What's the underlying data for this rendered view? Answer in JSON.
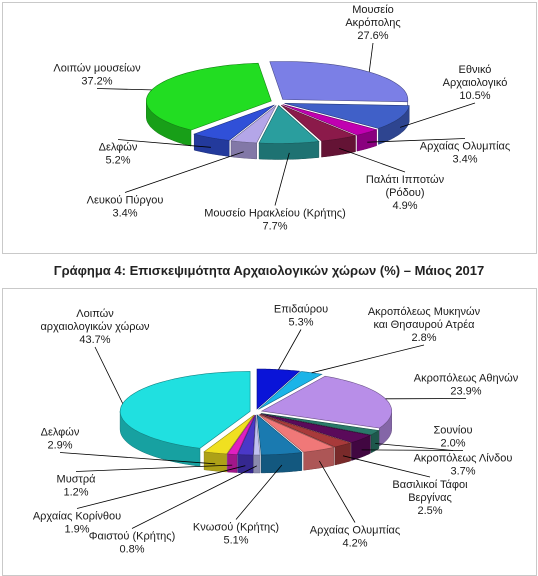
{
  "heading": "Γράφημα 4: Επισκεψιμότητα Αρχαιολογικών χώρων (%) – Μάιος 2017",
  "chart_data": [
    {
      "type": "pie",
      "style": "3d-exploded",
      "title": "",
      "slices": [
        {
          "label": [
            "Μουσείο",
            "Ακρόπολης"
          ],
          "value": 27.6,
          "display": "27.6%",
          "color": "#7b7fe6"
        },
        {
          "label": [
            "Εθνικό",
            "Αρχαιολογικό"
          ],
          "value": 10.5,
          "display": "10.5%",
          "color": "#4060c8"
        },
        {
          "label": [
            "Αρχαίας Ολυμπίας"
          ],
          "value": 3.4,
          "display": "3.4%",
          "color": "#c000b0"
        },
        {
          "label": [
            "Παλάτι Ιπποτών",
            "(Ρόδου)"
          ],
          "value": 4.9,
          "display": "4.9%",
          "color": "#8b1a4a"
        },
        {
          "label": [
            "Μουσείο Ηρακλείου (Κρήτης)"
          ],
          "value": 7.7,
          "display": "7.7%",
          "color": "#2a9e9e"
        },
        {
          "label": [
            "Λευκού Πύργου"
          ],
          "value": 3.4,
          "display": "3.4%",
          "color": "#b4a6e8"
        },
        {
          "label": [
            "Δελφών"
          ],
          "value": 5.2,
          "display": "5.2%",
          "color": "#3050d8"
        },
        {
          "label": [
            "Λοιπών μουσείων"
          ],
          "value": 37.2,
          "display": "37.2%",
          "color": "#22dd22"
        }
      ]
    },
    {
      "type": "pie",
      "style": "3d-exploded",
      "title": "",
      "slices": [
        {
          "label": [
            "Επιδαύρου"
          ],
          "value": 5.3,
          "display": "5.3%",
          "color": "#0a14d8"
        },
        {
          "label": [
            "Ακροπόλεως Μυκηνών",
            "και Θησαυρού Ατρέα"
          ],
          "value": 2.8,
          "display": "2.8%",
          "color": "#1ab4e8"
        },
        {
          "label": [
            "Ακροπόλεως Αθηνών"
          ],
          "value": 23.9,
          "display": "23.9%",
          "color": "#b88ee8"
        },
        {
          "label": [
            "Σουνίου"
          ],
          "value": 2.0,
          "display": "2.0%",
          "color": "#2a7a6a"
        },
        {
          "label": [
            "Ακροπόλεως Λίνδου"
          ],
          "value": 3.7,
          "display": "3.7%",
          "color": "#5a0a5a"
        },
        {
          "label": [
            "Βασιλικοί Τάφοι",
            "Βεργίνας"
          ],
          "value": 2.5,
          "display": "2.5%",
          "color": "#a83a3a"
        },
        {
          "label": [
            "Αρχαίας Ολυμπίας"
          ],
          "value": 4.2,
          "display": "4.2%",
          "color": "#f07878"
        },
        {
          "label": [
            "Κνωσού (Κρήτης)"
          ],
          "value": 5.1,
          "display": "5.1%",
          "color": "#1a7ab0"
        },
        {
          "label": [
            "Φαιστού (Κρήτης)"
          ],
          "value": 0.8,
          "display": "0.8%",
          "color": "#c0c0f0"
        },
        {
          "label": [
            "Αρχαίας Κορίνθου"
          ],
          "value": 1.9,
          "display": "1.9%",
          "color": "#4a38c8"
        },
        {
          "label": [
            "Μυστρά"
          ],
          "value": 1.2,
          "display": "1.2%",
          "color": "#e020c0"
        },
        {
          "label": [
            "Δελφών"
          ],
          "value": 2.9,
          "display": "2.9%",
          "color": "#f0e020"
        },
        {
          "label": [
            "Λοιπών",
            "αρχαιολογικών χώρων"
          ],
          "value": 43.7,
          "display": "43.7%",
          "color": "#20e0e0"
        }
      ]
    }
  ]
}
